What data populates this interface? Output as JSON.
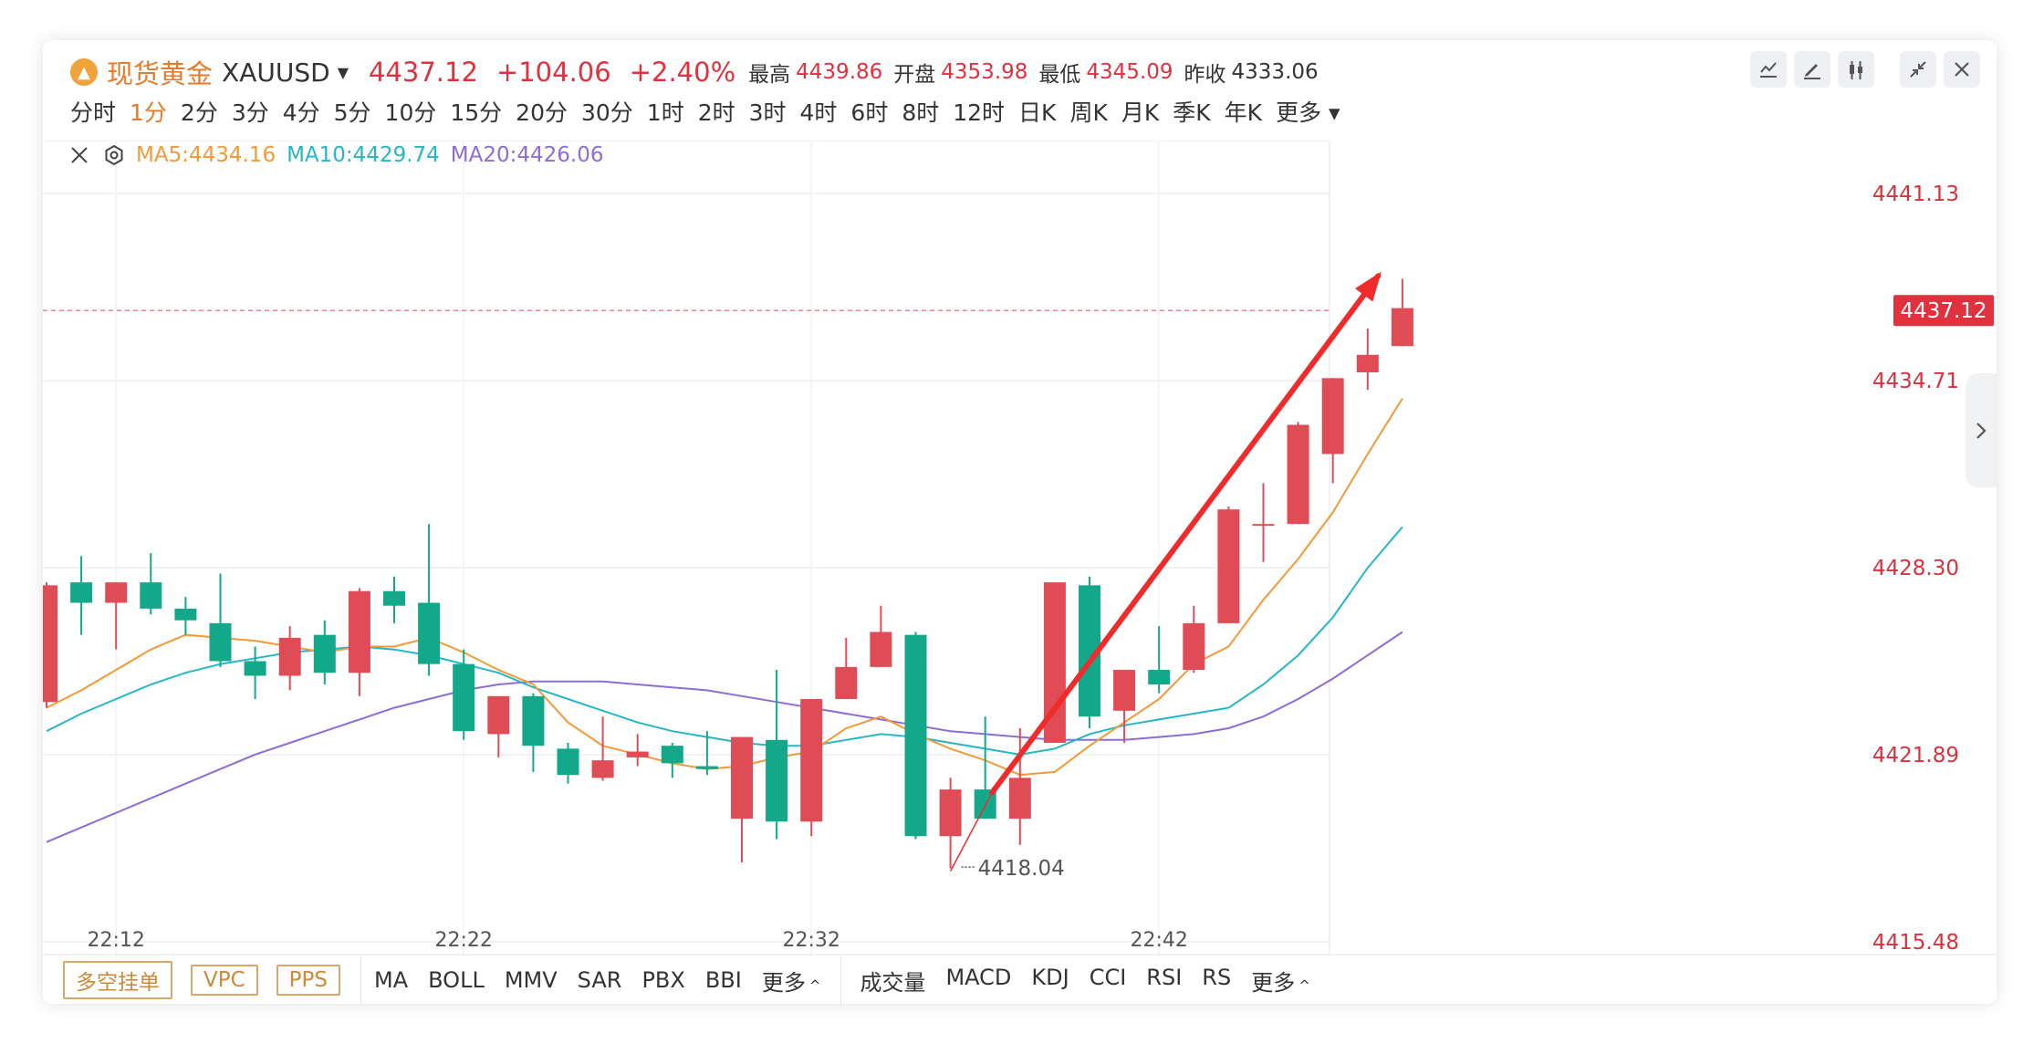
{
  "header": {
    "name": "现货黄金",
    "symbol": "XAUUSD",
    "price": "4437.12",
    "change": "+104.06",
    "change_pct": "+2.40%",
    "stats": [
      {
        "label": "最高",
        "value": "4439.86",
        "up": true
      },
      {
        "label": "开盘",
        "value": "4353.98",
        "up": true
      },
      {
        "label": "最低",
        "value": "4345.09",
        "up": true
      },
      {
        "label": "昨收",
        "value": "4333.06",
        "up": false
      }
    ],
    "icons": [
      "line-chart-icon",
      "draw-icon",
      "candlestick-icon",
      "collapse-icon",
      "close-icon"
    ]
  },
  "periods": [
    "分时",
    "1分",
    "2分",
    "3分",
    "4分",
    "5分",
    "10分",
    "15分",
    "20分",
    "30分",
    "1时",
    "2时",
    "3时",
    "4时",
    "6时",
    "8时",
    "12时",
    "日K",
    "周K",
    "月K",
    "季K",
    "年K",
    "更多"
  ],
  "active_period": "1分",
  "ma_legend": {
    "ma5": "MA5:4434.16",
    "ma10": "MA10:4429.74",
    "ma20": "MA20:4426.06"
  },
  "footer": {
    "buttons": [
      "多空挂单",
      "VPC",
      "PPS"
    ],
    "main_indicators": [
      "MA",
      "BOLL",
      "MMV",
      "SAR",
      "PBX",
      "BBI"
    ],
    "more_main": "更多",
    "sub_indicators": [
      "成交量",
      "MACD",
      "KDJ",
      "CCI",
      "RSI",
      "RS"
    ],
    "more_sub": "更多"
  },
  "colors": {
    "up": "#e04c56",
    "down": "#13a88a",
    "ma5": "#f29a38",
    "ma10": "#25b6c8",
    "ma20": "#8d6dd3",
    "arrow": "#ef2b2b"
  },
  "chart_data": {
    "type": "candlestick",
    "ylim": [
      4415.48,
      4441.13
    ],
    "y_ticks": [
      "4441.13",
      "4434.71",
      "4428.30",
      "4421.89",
      "4415.48"
    ],
    "x_ticks": [
      {
        "index": 2,
        "label": "22:12"
      },
      {
        "index": 12,
        "label": "22:22"
      },
      {
        "index": 22,
        "label": "22:32"
      },
      {
        "index": 32,
        "label": "22:42"
      }
    ],
    "last_price_label": "4437.12",
    "low_marker": {
      "index": 26,
      "label": "4418.04"
    },
    "candles": [
      {
        "o": 4423.7,
        "h": 4427.8,
        "l": 4423.5,
        "c": 4427.7
      },
      {
        "o": 4427.8,
        "h": 4428.7,
        "l": 4426.0,
        "c": 4427.1
      },
      {
        "o": 4427.1,
        "h": 4427.8,
        "l": 4425.5,
        "c": 4427.8
      },
      {
        "o": 4427.8,
        "h": 4428.8,
        "l": 4426.7,
        "c": 4426.9
      },
      {
        "o": 4426.9,
        "h": 4427.3,
        "l": 4426.0,
        "c": 4426.5
      },
      {
        "o": 4426.4,
        "h": 4428.1,
        "l": 4424.9,
        "c": 4425.1
      },
      {
        "o": 4425.1,
        "h": 4425.6,
        "l": 4423.8,
        "c": 4424.6
      },
      {
        "o": 4424.6,
        "h": 4426.3,
        "l": 4424.1,
        "c": 4425.9
      },
      {
        "o": 4426.0,
        "h": 4426.5,
        "l": 4424.3,
        "c": 4424.7
      },
      {
        "o": 4424.7,
        "h": 4427.6,
        "l": 4423.9,
        "c": 4427.5
      },
      {
        "o": 4427.5,
        "h": 4428.0,
        "l": 4426.4,
        "c": 4427.0
      },
      {
        "o": 4427.1,
        "h": 4429.8,
        "l": 4424.6,
        "c": 4425.0
      },
      {
        "o": 4425.0,
        "h": 4425.5,
        "l": 4422.4,
        "c": 4422.7
      },
      {
        "o": 4422.6,
        "h": 4423.8,
        "l": 4421.8,
        "c": 4423.9
      },
      {
        "o": 4423.9,
        "h": 4424.0,
        "l": 4421.3,
        "c": 4422.2
      },
      {
        "o": 4422.1,
        "h": 4422.3,
        "l": 4420.9,
        "c": 4421.2
      },
      {
        "o": 4421.1,
        "h": 4423.2,
        "l": 4421.0,
        "c": 4421.7
      },
      {
        "o": 4421.8,
        "h": 4422.6,
        "l": 4421.5,
        "c": 4422.0
      },
      {
        "o": 4422.2,
        "h": 4422.3,
        "l": 4421.1,
        "c": 4421.6
      },
      {
        "o": 4421.5,
        "h": 4422.7,
        "l": 4421.2,
        "c": 4421.4
      },
      {
        "o": 4419.7,
        "h": 4422.4,
        "l": 4418.2,
        "c": 4422.5
      },
      {
        "o": 4422.4,
        "h": 4424.8,
        "l": 4419.0,
        "c": 4419.6
      },
      {
        "o": 4419.6,
        "h": 4423.8,
        "l": 4419.1,
        "c": 4423.8
      },
      {
        "o": 4423.8,
        "h": 4425.9,
        "l": 4423.8,
        "c": 4424.9
      },
      {
        "o": 4424.9,
        "h": 4427.0,
        "l": 4424.9,
        "c": 4426.1
      },
      {
        "o": 4426.0,
        "h": 4426.1,
        "l": 4419.0,
        "c": 4419.1
      },
      {
        "o": 4419.1,
        "h": 4421.1,
        "l": 4418.0,
        "c": 4420.7
      },
      {
        "o": 4420.7,
        "h": 4423.2,
        "l": 4419.7,
        "c": 4419.7
      },
      {
        "o": 4419.7,
        "h": 4422.8,
        "l": 4418.8,
        "c": 4421.1
      },
      {
        "o": 4422.3,
        "h": 4427.8,
        "l": 4422.3,
        "c": 4427.8
      },
      {
        "o": 4427.7,
        "h": 4428.0,
        "l": 4422.8,
        "c": 4423.2
      },
      {
        "o": 4423.4,
        "h": 4424.8,
        "l": 4422.3,
        "c": 4424.8
      },
      {
        "o": 4424.8,
        "h": 4426.3,
        "l": 4424.0,
        "c": 4424.3
      },
      {
        "o": 4424.8,
        "h": 4427.0,
        "l": 4424.7,
        "c": 4426.4
      },
      {
        "o": 4426.4,
        "h": 4430.4,
        "l": 4426.4,
        "c": 4430.3
      },
      {
        "o": 4429.8,
        "h": 4431.2,
        "l": 4428.5,
        "c": 4429.8
      },
      {
        "o": 4429.8,
        "h": 4433.3,
        "l": 4429.8,
        "c": 4433.2
      },
      {
        "o": 4432.2,
        "h": 4434.8,
        "l": 4431.2,
        "c": 4434.8
      },
      {
        "o": 4435.0,
        "h": 4436.5,
        "l": 4434.4,
        "c": 4435.6
      },
      {
        "o": 4435.9,
        "h": 4438.2,
        "l": 4435.9,
        "c": 4437.2
      }
    ],
    "ma5": [
      4423.5,
      4424.1,
      4424.8,
      4425.5,
      4426.0,
      4425.9,
      4425.8,
      4425.6,
      4425.4,
      4425.6,
      4425.6,
      4425.9,
      4425.4,
      4424.8,
      4424.3,
      4423.0,
      4422.2,
      4421.9,
      4421.6,
      4421.4,
      4421.5,
      4421.8,
      4422.0,
      4422.8,
      4423.2,
      4422.6,
      4422.1,
      4421.7,
      4421.2,
      4421.3,
      4422.2,
      4423.0,
      4423.8,
      4425.0,
      4425.6,
      4427.2,
      4428.6,
      4430.2,
      4432.2,
      4434.1
    ],
    "ma10": [
      4422.7,
      4423.3,
      4423.8,
      4424.3,
      4424.7,
      4425.0,
      4425.2,
      4425.4,
      4425.5,
      4425.6,
      4425.5,
      4425.3,
      4425.0,
      4424.7,
      4424.2,
      4423.8,
      4423.4,
      4423.0,
      4422.7,
      4422.5,
      4422.3,
      4422.2,
      4422.2,
      4422.4,
      4422.6,
      4422.5,
      4422.3,
      4422.1,
      4421.9,
      4422.1,
      4422.6,
      4422.9,
      4423.1,
      4423.3,
      4423.5,
      4424.3,
      4425.3,
      4426.6,
      4428.3,
      4429.7
    ],
    "ma20": [
      4418.9,
      4419.4,
      4419.9,
      4420.4,
      4420.9,
      4421.4,
      4421.9,
      4422.3,
      4422.7,
      4423.1,
      4423.5,
      4423.8,
      4424.1,
      4424.3,
      4424.4,
      4424.4,
      4424.4,
      4424.3,
      4424.2,
      4424.1,
      4423.9,
      4423.7,
      4423.5,
      4423.3,
      4423.1,
      4422.9,
      4422.7,
      4422.6,
      4422.5,
      4422.4,
      4422.4,
      4422.4,
      4422.5,
      4422.6,
      4422.8,
      4423.2,
      4423.8,
      4424.5,
      4425.3,
      4426.1
    ]
  }
}
